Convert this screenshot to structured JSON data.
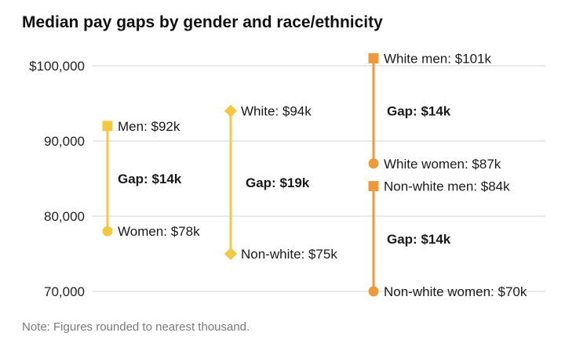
{
  "chart_data": {
    "type": "dumbbell",
    "title": "Median pay gaps by gender and race/ethnicity",
    "y_ticks": [
      {
        "value": 100000,
        "label": "$100,000"
      },
      {
        "value": 90000,
        "label": "90,000"
      },
      {
        "value": 80000,
        "label": "80,000"
      },
      {
        "value": 70000,
        "label": "70,000"
      }
    ],
    "ylim": [
      70000,
      101000
    ],
    "grid": true,
    "series": [
      {
        "color": "#f5c842",
        "high": {
          "value": 92000,
          "label": "Men: $92k",
          "marker": "square"
        },
        "low": {
          "value": 78000,
          "label": "Women: $78k",
          "marker": "circle"
        },
        "gap_label": "Gap: $14k"
      },
      {
        "color": "#f5c842",
        "high": {
          "value": 94000,
          "label": "White: $94k",
          "marker": "diamond"
        },
        "low": {
          "value": 75000,
          "label": "Non-white: $75k",
          "marker": "diamond"
        },
        "gap_label": "Gap: $19k"
      },
      {
        "color": "#ee9a3a",
        "high": {
          "value": 101000,
          "label": "White men: $101k",
          "marker": "square"
        },
        "low": {
          "value": 87000,
          "label": "White women: $87k",
          "marker": "circle"
        },
        "gap_label": "Gap: $14k"
      },
      {
        "color": "#ee9a3a",
        "high": {
          "value": 84000,
          "label": "Non-white men: $84k",
          "marker": "square"
        },
        "low": {
          "value": 70000,
          "label": "Non-white women: $70k",
          "marker": "circle"
        },
        "gap_label": "Gap: $14k"
      }
    ],
    "note": "Note: Figures rounded to nearest thousand."
  }
}
